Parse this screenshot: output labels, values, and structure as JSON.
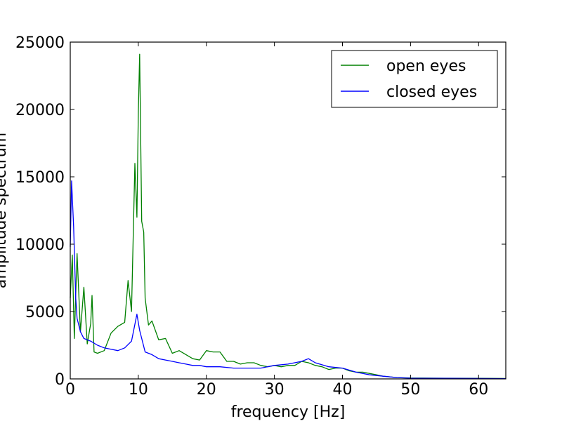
{
  "chart_data": {
    "type": "line",
    "title": "",
    "xlabel": "frequency [Hz]",
    "ylabel": "amplitude spectrum",
    "xlim": [
      0,
      64
    ],
    "ylim": [
      0,
      25000
    ],
    "x_ticks": [
      0,
      10,
      20,
      30,
      40,
      50,
      60
    ],
    "y_ticks": [
      0,
      5000,
      10000,
      15000,
      20000,
      25000
    ],
    "grid": false,
    "legend": {
      "placement": "top-right"
    },
    "series": [
      {
        "name": "open eyes",
        "color": "#008000",
        "points": [
          [
            0,
            6000
          ],
          [
            0.3,
            9200
          ],
          [
            0.6,
            3000
          ],
          [
            1,
            9300
          ],
          [
            1.5,
            3500
          ],
          [
            2,
            6800
          ],
          [
            2.5,
            2600
          ],
          [
            3,
            4100
          ],
          [
            3.2,
            6200
          ],
          [
            3.5,
            2000
          ],
          [
            4,
            1900
          ],
          [
            5,
            2100
          ],
          [
            6,
            3400
          ],
          [
            7,
            3900
          ],
          [
            8,
            4200
          ],
          [
            8.5,
            7300
          ],
          [
            9,
            5000
          ],
          [
            9.5,
            16000
          ],
          [
            9.8,
            12000
          ],
          [
            10,
            19800
          ],
          [
            10.2,
            24100
          ],
          [
            10.5,
            11700
          ],
          [
            10.8,
            10900
          ],
          [
            11,
            6000
          ],
          [
            11.5,
            4000
          ],
          [
            12,
            4300
          ],
          [
            13,
            2900
          ],
          [
            14,
            3000
          ],
          [
            15,
            1900
          ],
          [
            16,
            2100
          ],
          [
            17,
            1800
          ],
          [
            18,
            1500
          ],
          [
            19,
            1400
          ],
          [
            20,
            2100
          ],
          [
            21,
            2000
          ],
          [
            22,
            2000
          ],
          [
            23,
            1300
          ],
          [
            24,
            1300
          ],
          [
            25,
            1100
          ],
          [
            26,
            1200
          ],
          [
            27,
            1200
          ],
          [
            28,
            1000
          ],
          [
            29,
            900
          ],
          [
            30,
            1000
          ],
          [
            31,
            900
          ],
          [
            32,
            1000
          ],
          [
            33,
            1000
          ],
          [
            34,
            1300
          ],
          [
            35,
            1200
          ],
          [
            36,
            1000
          ],
          [
            37,
            900
          ],
          [
            38,
            700
          ],
          [
            39,
            800
          ],
          [
            40,
            800
          ],
          [
            41,
            600
          ],
          [
            42,
            500
          ],
          [
            43,
            500
          ],
          [
            44,
            400
          ],
          [
            45,
            300
          ],
          [
            46,
            200
          ],
          [
            47,
            150
          ],
          [
            48,
            100
          ],
          [
            50,
            70
          ],
          [
            55,
            50
          ],
          [
            60,
            40
          ],
          [
            64,
            30
          ]
        ]
      },
      {
        "name": "closed eyes",
        "color": "#0000ff",
        "points": [
          [
            0,
            9800
          ],
          [
            0.2,
            14700
          ],
          [
            0.5,
            11300
          ],
          [
            0.8,
            6000
          ],
          [
            1,
            4500
          ],
          [
            1.5,
            3500
          ],
          [
            2,
            3000
          ],
          [
            3,
            2800
          ],
          [
            4,
            2500
          ],
          [
            5,
            2300
          ],
          [
            6,
            2200
          ],
          [
            7,
            2100
          ],
          [
            8,
            2300
          ],
          [
            9,
            2800
          ],
          [
            9.8,
            4800
          ],
          [
            10.2,
            3600
          ],
          [
            11,
            2000
          ],
          [
            12,
            1800
          ],
          [
            13,
            1500
          ],
          [
            14,
            1400
          ],
          [
            15,
            1300
          ],
          [
            16,
            1200
          ],
          [
            17,
            1100
          ],
          [
            18,
            1000
          ],
          [
            19,
            1000
          ],
          [
            20,
            900
          ],
          [
            22,
            900
          ],
          [
            24,
            800
          ],
          [
            26,
            800
          ],
          [
            28,
            800
          ],
          [
            30,
            1000
          ],
          [
            32,
            1100
          ],
          [
            34,
            1300
          ],
          [
            35,
            1500
          ],
          [
            36,
            1200
          ],
          [
            38,
            900
          ],
          [
            40,
            800
          ],
          [
            42,
            500
          ],
          [
            44,
            300
          ],
          [
            46,
            200
          ],
          [
            48,
            100
          ],
          [
            50,
            50
          ],
          [
            55,
            40
          ],
          [
            60,
            30
          ],
          [
            64,
            20
          ]
        ]
      }
    ]
  }
}
